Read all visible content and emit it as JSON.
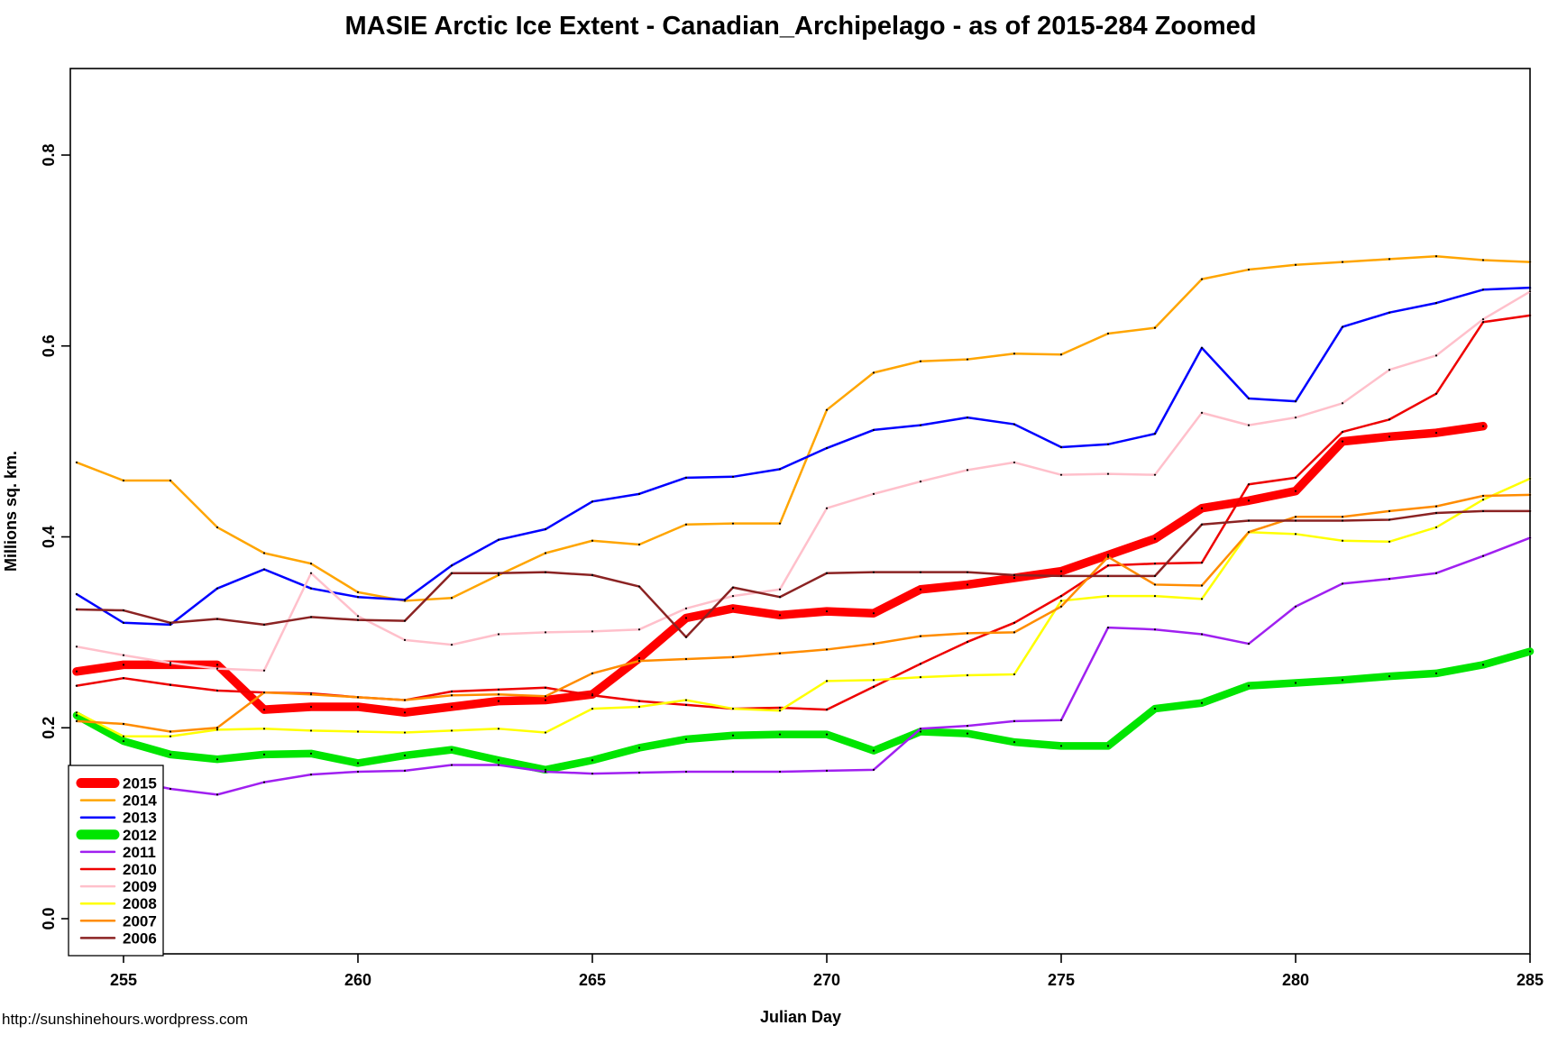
{
  "title": "MASIE Arctic Ice Extent - Canadian_Archipelago - as of 2015-284 Zoomed",
  "footer_url": "http://sunshinehours.wordpress.com",
  "chart_data": {
    "type": "line",
    "title": "MASIE Arctic Ice Extent - Canadian_Archipelago - as of 2015-284 Zoomed",
    "xlabel": "Julian Day",
    "ylabel": "Millions sq. km.",
    "x_ticks": [
      255,
      260,
      265,
      270,
      275,
      280,
      285
    ],
    "y_ticks": [
      0.0,
      0.2,
      0.4,
      0.6,
      0.8
    ],
    "xlim": [
      253.9,
      285.0
    ],
    "ylim": [
      -0.04,
      0.89
    ],
    "grid": false,
    "legend_position": "bottom-left",
    "point_marker": "small-black-dot",
    "series": [
      {
        "name": "2015",
        "color": "#FF0000",
        "thick": true,
        "line_width": 9.5,
        "start_day": 254,
        "values": [
          0.259,
          0.266,
          0.266,
          0.266,
          0.219,
          0.222,
          0.222,
          0.216,
          0.222,
          0.228,
          0.229,
          0.235,
          0.273,
          0.315,
          0.325,
          0.318,
          0.322,
          0.32,
          0.345,
          0.35,
          0.357,
          0.364,
          0.381,
          0.398,
          0.43,
          0.438,
          0.448,
          0.5,
          0.505,
          0.509,
          0.516
        ]
      },
      {
        "name": "2014",
        "color": "#FFA500",
        "thick": false,
        "line_width": 2.5,
        "start_day": 254,
        "values": [
          0.478,
          0.459,
          0.459,
          0.41,
          0.383,
          0.372,
          0.342,
          0.333,
          0.336,
          0.36,
          0.383,
          0.396,
          0.392,
          0.413,
          0.414,
          0.414,
          0.533,
          0.572,
          0.584,
          0.586,
          0.592,
          0.591,
          0.613,
          0.619,
          0.67,
          0.68,
          0.685,
          0.688,
          0.691,
          0.694,
          0.69,
          0.688
        ]
      },
      {
        "name": "2013",
        "color": "#0000FF",
        "thick": false,
        "line_width": 2.5,
        "start_day": 254,
        "values": [
          0.34,
          0.31,
          0.308,
          0.346,
          0.366,
          0.346,
          0.337,
          0.334,
          0.37,
          0.397,
          0.408,
          0.437,
          0.445,
          0.462,
          0.463,
          0.471,
          0.493,
          0.512,
          0.517,
          0.525,
          0.518,
          0.494,
          0.497,
          0.508,
          0.598,
          0.545,
          0.542,
          0.62,
          0.635,
          0.645,
          0.659,
          0.661
        ]
      },
      {
        "name": "2012",
        "color": "#00E500",
        "thick": true,
        "line_width": 8.5,
        "start_day": 254,
        "values": [
          0.213,
          0.186,
          0.172,
          0.167,
          0.172,
          0.173,
          0.163,
          0.171,
          0.177,
          0.166,
          0.156,
          0.166,
          0.179,
          0.188,
          0.192,
          0.193,
          0.193,
          0.176,
          0.196,
          0.194,
          0.185,
          0.181,
          0.181,
          0.22,
          0.226,
          0.244,
          0.247,
          0.25,
          0.254,
          0.257,
          0.266,
          0.28
        ]
      },
      {
        "name": "2011",
        "color": "#A020F0",
        "thick": false,
        "line_width": 2.5,
        "start_day": 254,
        "values": [
          0.144,
          0.146,
          0.136,
          0.13,
          0.143,
          0.151,
          0.154,
          0.155,
          0.161,
          0.161,
          0.154,
          0.152,
          0.153,
          0.154,
          0.154,
          0.154,
          0.155,
          0.156,
          0.199,
          0.202,
          0.207,
          0.208,
          0.305,
          0.303,
          0.298,
          0.288,
          0.327,
          0.351,
          0.356,
          0.362,
          0.38,
          0.399
        ]
      },
      {
        "name": "2010",
        "color": "#EE0000",
        "thick": false,
        "line_width": 2.5,
        "start_day": 254,
        "values": [
          0.244,
          0.252,
          0.245,
          0.239,
          0.237,
          0.236,
          0.232,
          0.229,
          0.238,
          0.24,
          0.242,
          0.234,
          0.228,
          0.224,
          0.22,
          0.221,
          0.219,
          0.243,
          0.267,
          0.29,
          0.31,
          0.338,
          0.37,
          0.372,
          0.373,
          0.455,
          0.462,
          0.51,
          0.523,
          0.55,
          0.625,
          0.632
        ]
      },
      {
        "name": "2009",
        "color": "#FFC0CB",
        "thick": false,
        "line_width": 2.5,
        "start_day": 254,
        "values": [
          0.285,
          0.276,
          0.268,
          0.262,
          0.26,
          0.362,
          0.317,
          0.292,
          0.287,
          0.298,
          0.3,
          0.301,
          0.303,
          0.325,
          0.338,
          0.345,
          0.43,
          0.445,
          0.458,
          0.47,
          0.478,
          0.465,
          0.466,
          0.465,
          0.53,
          0.517,
          0.525,
          0.54,
          0.575,
          0.59,
          0.628,
          0.657
        ]
      },
      {
        "name": "2008",
        "color": "#FFFF00",
        "thick": false,
        "line_width": 2.5,
        "start_day": 254,
        "values": [
          0.216,
          0.191,
          0.191,
          0.198,
          0.199,
          0.197,
          0.196,
          0.195,
          0.197,
          0.199,
          0.195,
          0.22,
          0.222,
          0.229,
          0.22,
          0.218,
          0.249,
          0.25,
          0.253,
          0.255,
          0.256,
          0.333,
          0.338,
          0.338,
          0.335,
          0.405,
          0.403,
          0.396,
          0.395,
          0.41,
          0.439,
          0.461
        ]
      },
      {
        "name": "2007",
        "color": "#FF8C00",
        "thick": false,
        "line_width": 2.5,
        "start_day": 254,
        "values": [
          0.207,
          0.204,
          0.196,
          0.2,
          0.237,
          0.235,
          0.232,
          0.229,
          0.234,
          0.235,
          0.233,
          0.257,
          0.27,
          0.272,
          0.274,
          0.278,
          0.282,
          0.288,
          0.296,
          0.299,
          0.3,
          0.327,
          0.379,
          0.35,
          0.349,
          0.405,
          0.421,
          0.421,
          0.427,
          0.432,
          0.443,
          0.444
        ]
      },
      {
        "name": "2006",
        "color": "#8B2323",
        "thick": false,
        "line_width": 2.5,
        "start_day": 254,
        "values": [
          0.324,
          0.323,
          0.31,
          0.314,
          0.308,
          0.316,
          0.313,
          0.312,
          0.362,
          0.362,
          0.363,
          0.36,
          0.348,
          0.295,
          0.347,
          0.337,
          0.362,
          0.363,
          0.363,
          0.363,
          0.36,
          0.359,
          0.359,
          0.359,
          0.413,
          0.417,
          0.417,
          0.417,
          0.418,
          0.425,
          0.427,
          0.427
        ]
      }
    ]
  }
}
